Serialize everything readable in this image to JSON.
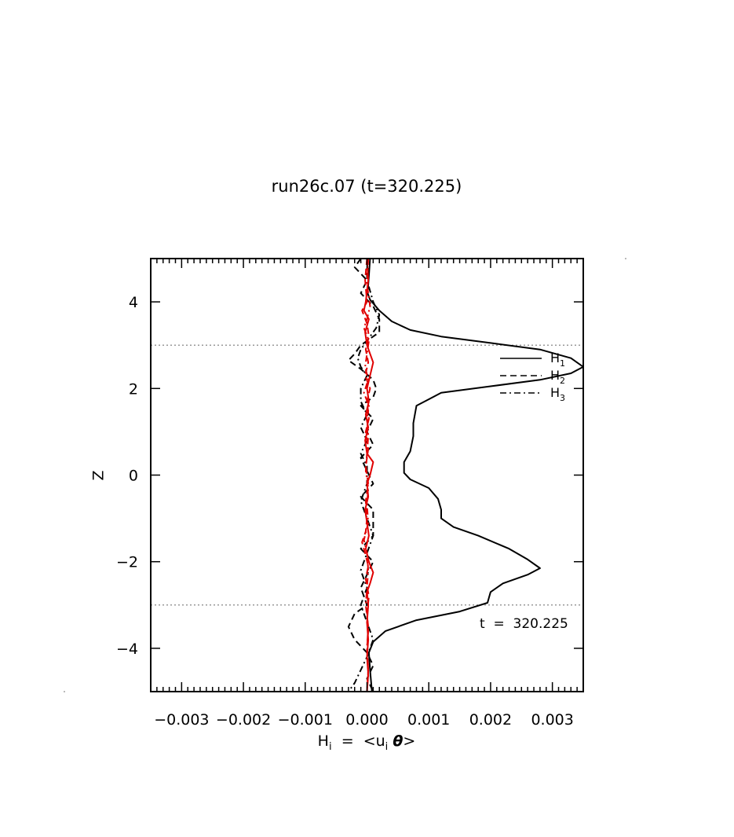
{
  "chart_data": {
    "type": "line",
    "title": "run26c.07 (t=320.225)",
    "xlabel": "H",
    "xlabel_sub": "i",
    "xlabel_eq": "=",
    "xlabel_expr_open": "<u",
    "xlabel_expr_sub": "i",
    "xlabel_expr_theta": "θ",
    "xlabel_expr_close": ">",
    "ylabel": "Z",
    "xlim": [
      -0.0035,
      0.0035
    ],
    "ylim": [
      -5,
      5
    ],
    "x_ticks": [
      -0.003,
      -0.002,
      -0.001,
      0.0,
      0.001,
      0.002,
      0.003
    ],
    "x_tick_labels": [
      "−0.003",
      "−0.002",
      "−0.001",
      "0.000",
      "0.001",
      "0.002",
      "0.003"
    ],
    "y_ticks": [
      -4,
      -2,
      0,
      2,
      4
    ],
    "y_tick_labels": [
      "−4",
      "−2",
      "0",
      "2",
      "4"
    ],
    "hlines": [
      3,
      -3
    ],
    "annotation": "t  =  320.225",
    "legend_position": "upper-right",
    "legend": [
      {
        "base": "H",
        "sub": "1",
        "style": "solid"
      },
      {
        "base": "H",
        "sub": "2",
        "style": "dashed"
      },
      {
        "base": "H",
        "sub": "3",
        "style": "dashdot"
      }
    ],
    "series": [
      {
        "legend_index": 0,
        "color": "#000000",
        "style": "solid",
        "points": [
          [
            5e-05,
            5.0
          ],
          [
            3e-05,
            4.6
          ],
          [
            1e-05,
            4.2
          ],
          [
            5e-05,
            4.05
          ],
          [
            0.0002,
            3.8
          ],
          [
            0.0004,
            3.55
          ],
          [
            0.0007,
            3.35
          ],
          [
            0.0012,
            3.2
          ],
          [
            0.002,
            3.05
          ],
          [
            0.0028,
            2.9
          ],
          [
            0.0033,
            2.7
          ],
          [
            0.0035,
            2.5
          ],
          [
            0.0033,
            2.35
          ],
          [
            0.0028,
            2.2
          ],
          [
            0.002,
            2.05
          ],
          [
            0.0012,
            1.9
          ],
          [
            0.0008,
            1.6
          ],
          [
            0.00075,
            1.2
          ],
          [
            0.00075,
            0.9
          ],
          [
            0.0007,
            0.55
          ],
          [
            0.0006,
            0.3
          ],
          [
            0.0006,
            0.05
          ],
          [
            0.0007,
            -0.1
          ],
          [
            0.001,
            -0.3
          ],
          [
            0.00115,
            -0.55
          ],
          [
            0.0012,
            -0.8
          ],
          [
            0.0012,
            -1.0
          ],
          [
            0.0014,
            -1.2
          ],
          [
            0.0018,
            -1.4
          ],
          [
            0.0023,
            -1.7
          ],
          [
            0.0026,
            -1.95
          ],
          [
            0.0028,
            -2.15
          ],
          [
            0.0026,
            -2.3
          ],
          [
            0.0022,
            -2.5
          ],
          [
            0.002,
            -2.7
          ],
          [
            0.00195,
            -2.95
          ],
          [
            0.0015,
            -3.15
          ],
          [
            0.0008,
            -3.35
          ],
          [
            0.0003,
            -3.6
          ],
          [
            0.0001,
            -3.85
          ],
          [
            3e-05,
            -4.1
          ],
          [
            5e-05,
            -4.5
          ],
          [
            8e-05,
            -5.0
          ]
        ]
      },
      {
        "legend_index": 1,
        "color": "#000000",
        "style": "dashed",
        "points": [
          [
            -0.0001,
            5.0
          ],
          [
            -0.0002,
            4.8
          ],
          [
            0.0,
            4.5
          ],
          [
            -0.0001,
            4.2
          ],
          [
            0.0001,
            3.9
          ],
          [
            0.0002,
            3.6
          ],
          [
            0.0002,
            3.3
          ],
          [
            -0.0001,
            3.0
          ],
          [
            -0.0002,
            2.8
          ],
          [
            -0.0003,
            2.65
          ],
          [
            -0.0001,
            2.45
          ],
          [
            0.0001,
            2.2
          ],
          [
            0.00015,
            2.0
          ],
          [
            0.0001,
            1.8
          ],
          [
            -0.0001,
            1.6
          ],
          [
            0.0001,
            1.3
          ],
          [
            0.0,
            1.0
          ],
          [
            0.0001,
            0.7
          ],
          [
            -0.0001,
            0.4
          ],
          [
            0.0,
            0.1
          ],
          [
            0.0001,
            -0.2
          ],
          [
            -0.0001,
            -0.5
          ],
          [
            0.0001,
            -0.8
          ],
          [
            0.0001,
            -1.1
          ],
          [
            0.0001,
            -1.4
          ],
          [
            -0.0001,
            -1.7
          ],
          [
            0.0001,
            -2.0
          ],
          [
            0.0,
            -2.3
          ],
          [
            -0.0001,
            -2.6
          ],
          [
            0.0,
            -3.0
          ],
          [
            -0.0002,
            -3.2
          ],
          [
            -0.0003,
            -3.5
          ],
          [
            -0.0002,
            -3.8
          ],
          [
            0.0,
            -4.1
          ],
          [
            0.0001,
            -4.4
          ],
          [
            0.0,
            -4.7
          ],
          [
            0.0001,
            -5.0
          ]
        ]
      },
      {
        "legend_index": 2,
        "color": "#000000",
        "style": "dashdot",
        "points": [
          [
            0.0,
            5.0
          ],
          [
            0.0,
            4.5
          ],
          [
            0.0001,
            4.0
          ],
          [
            0.0002,
            3.7
          ],
          [
            0.00015,
            3.4
          ],
          [
            0.0,
            3.1
          ],
          [
            -0.0001,
            2.9
          ],
          [
            -0.00015,
            2.7
          ],
          [
            -0.0001,
            2.5
          ],
          [
            0.0,
            2.3
          ],
          [
            -0.0001,
            2.0
          ],
          [
            -0.0001,
            1.7
          ],
          [
            0.0,
            1.4
          ],
          [
            -0.0001,
            1.1
          ],
          [
            0.0,
            0.8
          ],
          [
            -0.0001,
            0.5
          ],
          [
            0.0,
            0.2
          ],
          [
            0.0,
            -0.2
          ],
          [
            -0.0001,
            -0.6
          ],
          [
            0.0,
            -1.0
          ],
          [
            0.0001,
            -1.4
          ],
          [
            0.0,
            -1.8
          ],
          [
            -0.0001,
            -2.2
          ],
          [
            0.0,
            -2.6
          ],
          [
            -0.0001,
            -3.0
          ],
          [
            0.0,
            -3.4
          ],
          [
            0.0001,
            -3.8
          ],
          [
            0.0,
            -4.2
          ],
          [
            -0.0001,
            -4.5
          ],
          [
            -0.0002,
            -4.8
          ],
          [
            -0.0003,
            -5.0
          ]
        ]
      },
      {
        "color": "#e00000",
        "style": "solid",
        "points": [
          [
            0.0,
            5.0
          ],
          [
            2e-05,
            4.5
          ],
          [
            -2e-05,
            4.0
          ],
          [
            -5e-05,
            3.8
          ],
          [
            3e-05,
            3.6
          ],
          [
            -3e-05,
            3.3
          ],
          [
            0.0,
            3.0
          ],
          [
            5e-05,
            2.8
          ],
          [
            0.0001,
            2.6
          ],
          [
            5e-05,
            2.3
          ],
          [
            0.0,
            2.0
          ],
          [
            3e-05,
            1.7
          ],
          [
            -2e-05,
            1.4
          ],
          [
            2e-05,
            1.1
          ],
          [
            -3e-05,
            0.8
          ],
          [
            0.0,
            0.5
          ],
          [
            0.0001,
            0.3
          ],
          [
            5e-05,
            0.0
          ],
          [
            0.0,
            -0.2
          ],
          [
            2e-05,
            -0.5
          ],
          [
            -3e-05,
            -0.8
          ],
          [
            0.0,
            -1.1
          ],
          [
            3e-05,
            -1.4
          ],
          [
            -2e-05,
            -1.7
          ],
          [
            3e-05,
            -2.0
          ],
          [
            0.0001,
            -2.25
          ],
          [
            5e-05,
            -2.5
          ],
          [
            0.0,
            -2.7
          ],
          [
            2e-05,
            -3.0
          ],
          [
            0.0,
            -3.4
          ],
          [
            2e-05,
            -3.8
          ],
          [
            0.0,
            -4.2
          ],
          [
            2e-05,
            -4.6
          ],
          [
            0.0,
            -5.0
          ]
        ]
      },
      {
        "color": "#e00000",
        "style": "dashed",
        "points": [
          [
            0.0,
            5.0
          ],
          [
            -3e-05,
            4.5
          ],
          [
            0.0,
            4.0
          ],
          [
            -8e-05,
            3.8
          ],
          [
            0.0,
            3.5
          ],
          [
            3e-05,
            3.2
          ],
          [
            -2e-05,
            2.9
          ],
          [
            2e-05,
            2.6
          ],
          [
            -3e-05,
            2.3
          ],
          [
            5e-05,
            2.0
          ],
          [
            0.0,
            1.7
          ],
          [
            3e-05,
            1.3
          ],
          [
            -2e-05,
            1.0
          ],
          [
            2e-05,
            0.6
          ],
          [
            -2e-05,
            0.2
          ],
          [
            2e-05,
            -0.2
          ],
          [
            -2e-05,
            -0.6
          ],
          [
            0.0,
            -1.0
          ],
          [
            -2e-05,
            -1.3
          ],
          [
            -8e-05,
            -1.55
          ],
          [
            -3e-05,
            -1.8
          ],
          [
            2e-05,
            -2.1
          ],
          [
            -2e-05,
            -2.4
          ],
          [
            3e-05,
            -2.8
          ],
          [
            0.0,
            -3.2
          ],
          [
            2e-05,
            -3.6
          ],
          [
            0.0,
            -4.0
          ],
          [
            2e-05,
            -4.5
          ],
          [
            0.0,
            -5.0
          ]
        ]
      },
      {
        "color": "#e00000",
        "style": "dashdot",
        "points": [
          [
            2e-05,
            5.0
          ],
          [
            0.0,
            4.4
          ],
          [
            5e-05,
            3.9
          ],
          [
            0.0,
            3.6
          ],
          [
            -5e-05,
            3.4
          ],
          [
            3e-05,
            3.1
          ],
          [
            0.0,
            2.8
          ],
          [
            -3e-05,
            2.5
          ],
          [
            2e-05,
            2.2
          ],
          [
            -5e-05,
            1.9
          ],
          [
            3e-05,
            1.6
          ],
          [
            0.0,
            1.3
          ],
          [
            2e-05,
            0.9
          ],
          [
            0.0,
            0.5
          ],
          [
            -2e-05,
            0.1
          ],
          [
            2e-05,
            -0.3
          ],
          [
            0.0,
            -0.7
          ],
          [
            2e-05,
            -1.1
          ],
          [
            -5e-05,
            -1.5
          ],
          [
            0.0,
            -1.8
          ],
          [
            2e-05,
            -2.2
          ],
          [
            0.0,
            -2.6
          ],
          [
            -2e-05,
            -3.0
          ],
          [
            2e-05,
            -3.5
          ],
          [
            0.0,
            -4.0
          ],
          [
            2e-05,
            -4.5
          ],
          [
            0.0,
            -5.0
          ]
        ]
      }
    ]
  }
}
